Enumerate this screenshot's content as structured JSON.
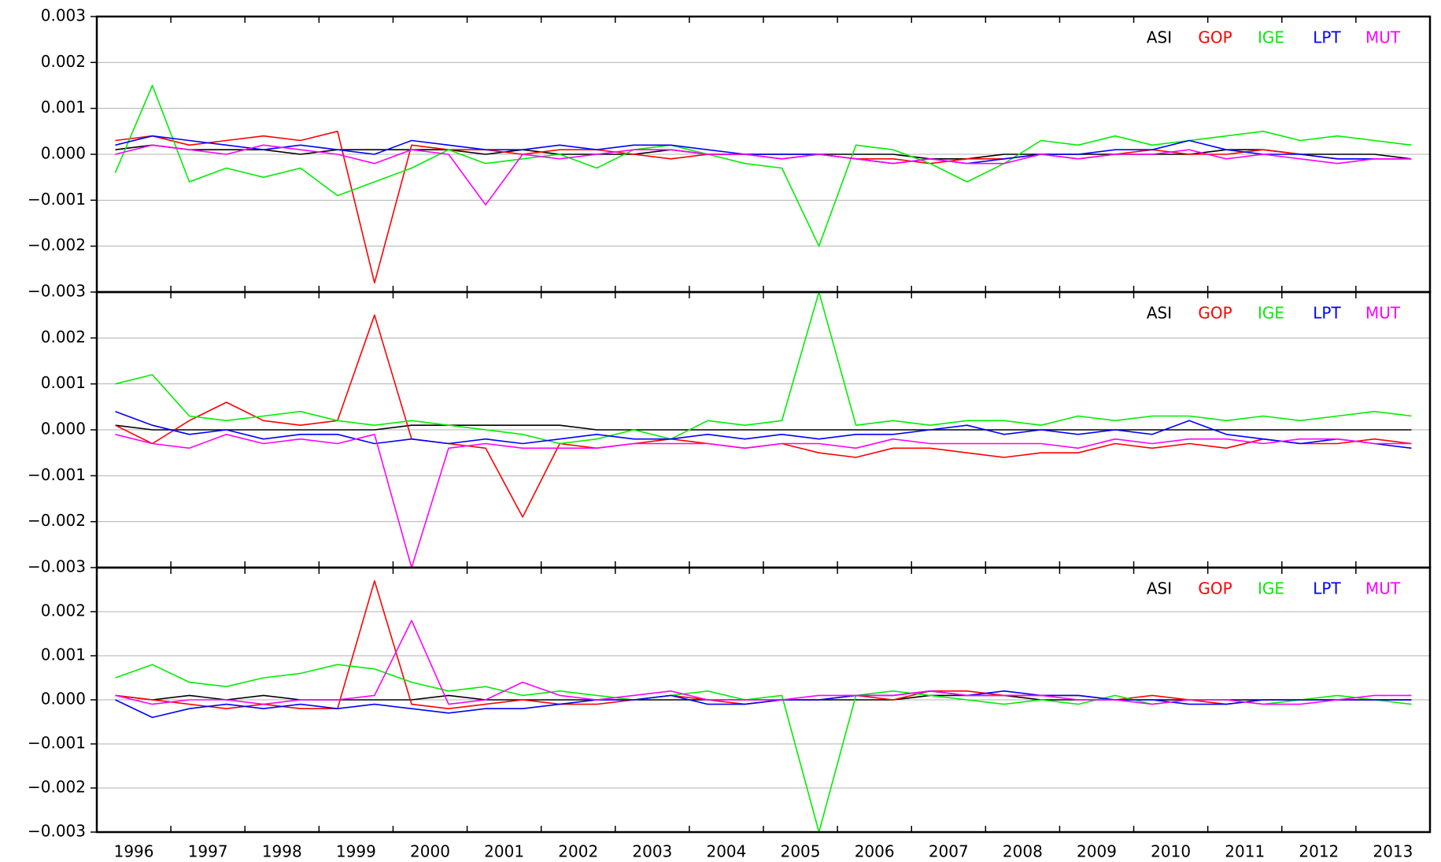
{
  "chart_data": [
    {
      "type": "line",
      "legend": "top-right",
      "grid": true,
      "xlim": [
        1996,
        2014
      ],
      "ylim": [
        -0.003,
        0.003
      ],
      "yticks": [
        {
          "value": -0.003,
          "label": "−0.003"
        },
        {
          "value": -0.002,
          "label": "−0.002"
        },
        {
          "value": -0.001,
          "label": "−0.001"
        },
        {
          "value": 0,
          "label": "0.000"
        },
        0.001,
        0.002,
        0.003
      ],
      "x": [
        1996.25,
        1996.75,
        1997.25,
        1997.75,
        1998.25,
        1998.75,
        1999.25,
        1999.75,
        2000.25,
        2000.75,
        2001.25,
        2001.75,
        2002.25,
        2002.75,
        2003.25,
        2003.75,
        2004.25,
        2004.75,
        2005.25,
        2005.75,
        2006.25,
        2006.75,
        2007.25,
        2007.75,
        2008.25,
        2008.75,
        2009.25,
        2009.75,
        2010.25,
        2010.75,
        2011.25,
        2011.75,
        2012.25,
        2012.75,
        2013.25,
        2013.75
      ],
      "series": [
        {
          "name": "ASI",
          "color": "#000000",
          "values": [
            0.0001,
            0.0002,
            0.0001,
            0.0001,
            0.0001,
            0,
            0.0001,
            0.0001,
            0.0001,
            0.0001,
            0,
            0.0001,
            0,
            0,
            0,
            0.0001,
            0,
            0,
            0,
            0,
            0,
            0,
            -0.0001,
            -0.0001,
            0,
            0,
            0,
            0,
            0,
            0,
            0.0001,
            0.0001,
            0,
            0,
            0,
            -0.0001
          ]
        },
        {
          "name": "GOP",
          "color": "#ff0000",
          "values": [
            0.0003,
            0.0004,
            0.0002,
            0.0003,
            0.0004,
            0.0003,
            0.0005,
            -0.0028,
            0.0002,
            0.0001,
            0.0001,
            0,
            0.0001,
            0.0001,
            0,
            -0.0001,
            0,
            0,
            -0.0001,
            0,
            -0.0001,
            -0.0001,
            -0.0002,
            -0.0001,
            -0.0001,
            0,
            -0.0001,
            0,
            0.0001,
            0,
            0,
            0.0001,
            0,
            -0.0001,
            -0.0001,
            -0.0001
          ]
        },
        {
          "name": "IGE",
          "color": "#00ee00",
          "values": [
            -0.0004,
            0.0015,
            -0.0006,
            -0.0003,
            -0.0005,
            -0.0003,
            -0.0009,
            -0.0006,
            -0.0003,
            0.0001,
            -0.0002,
            -0.0001,
            0,
            -0.0003,
            0.0001,
            0.0002,
            0,
            -0.0002,
            -0.0003,
            -0.002,
            0.0002,
            0.0001,
            -0.0002,
            -0.0006,
            -0.0002,
            0.0003,
            0.0002,
            0.0004,
            0.0002,
            0.0003,
            0.0004,
            0.0005,
            0.0003,
            0.0004,
            0.0003,
            0.0002
          ]
        },
        {
          "name": "LPT",
          "color": "#0000ff",
          "values": [
            0.0002,
            0.0004,
            0.0003,
            0.0002,
            0.0001,
            0.0002,
            0.0001,
            0,
            0.0003,
            0.0002,
            0.0001,
            0.0001,
            0.0002,
            0.0001,
            0.0002,
            0.0002,
            0.0001,
            0,
            0,
            0,
            -0.0001,
            -0.0002,
            -0.0001,
            -0.0002,
            -0.0001,
            0,
            0,
            0.0001,
            0.0001,
            0.0003,
            0.0001,
            0,
            0,
            -0.0001,
            -0.0001,
            -0.0001
          ]
        },
        {
          "name": "MUT",
          "color": "#ff00ff",
          "values": [
            0,
            0.0002,
            0.0001,
            0,
            0.0002,
            0.0001,
            0,
            -0.0002,
            0.0001,
            0,
            -0.0011,
            0,
            -0.0001,
            0,
            0.0001,
            0.0001,
            0,
            0,
            -0.0001,
            0,
            -0.0001,
            -0.0002,
            -0.0001,
            -0.0002,
            -0.0002,
            0,
            -0.0001,
            0,
            0,
            0.0001,
            -0.0001,
            0,
            -0.0001,
            -0.0002,
            -0.0001,
            -0.0001
          ]
        }
      ]
    },
    {
      "type": "line",
      "legend": "top-right",
      "grid": true,
      "xlim": [
        1996,
        2014
      ],
      "ylim": [
        -0.003,
        0.003
      ],
      "yticks": [
        {
          "value": -0.003,
          "label": "−0.003"
        },
        {
          "value": -0.002,
          "label": "−0.002"
        },
        {
          "value": -0.001,
          "label": "−0.001"
        },
        {
          "value": 0,
          "label": "0.000"
        },
        0.001,
        0.002
      ],
      "x": [
        1996.25,
        1996.75,
        1997.25,
        1997.75,
        1998.25,
        1998.75,
        1999.25,
        1999.75,
        2000.25,
        2000.75,
        2001.25,
        2001.75,
        2002.25,
        2002.75,
        2003.25,
        2003.75,
        2004.25,
        2004.75,
        2005.25,
        2005.75,
        2006.25,
        2006.75,
        2007.25,
        2007.75,
        2008.25,
        2008.75,
        2009.25,
        2009.75,
        2010.25,
        2010.75,
        2011.25,
        2011.75,
        2012.25,
        2012.75,
        2013.25,
        2013.75
      ],
      "series": [
        {
          "name": "ASI",
          "color": "#000000",
          "values": [
            0.0001,
            0,
            0,
            0,
            0,
            0,
            0,
            0,
            0.0001,
            0.0001,
            0.0001,
            0.0001,
            0.0001,
            0,
            0,
            0,
            0,
            0,
            0,
            0,
            0,
            0,
            0,
            0,
            0,
            0,
            0,
            0,
            0,
            0,
            0,
            0,
            0,
            0,
            0,
            0
          ]
        },
        {
          "name": "GOP",
          "color": "#ff0000",
          "values": [
            0.0001,
            -0.0003,
            0.0002,
            0.0006,
            0.0002,
            0.0001,
            0.0002,
            0.0025,
            -0.0002,
            -0.0003,
            -0.0004,
            -0.0019,
            -0.0003,
            -0.0004,
            -0.0003,
            -0.0002,
            -0.0003,
            -0.0004,
            -0.0003,
            -0.0005,
            -0.0006,
            -0.0004,
            -0.0004,
            -0.0005,
            -0.0006,
            -0.0005,
            -0.0005,
            -0.0003,
            -0.0004,
            -0.0003,
            -0.0004,
            -0.0002,
            -0.0003,
            -0.0003,
            -0.0002,
            -0.0003
          ]
        },
        {
          "name": "IGE",
          "color": "#00ee00",
          "values": [
            0.001,
            0.0012,
            0.0003,
            0.0002,
            0.0003,
            0.0004,
            0.0002,
            0.0001,
            0.0002,
            0.0001,
            0,
            -0.0001,
            -0.0003,
            -0.0002,
            0,
            -0.0002,
            0.0002,
            0.0001,
            0.0002,
            0.003,
            0.0001,
            0.0002,
            0.0001,
            0.0002,
            0.0002,
            0.0001,
            0.0003,
            0.0002,
            0.0003,
            0.0003,
            0.0002,
            0.0003,
            0.0002,
            0.0003,
            0.0004,
            0.0003
          ]
        },
        {
          "name": "LPT",
          "color": "#0000ff",
          "values": [
            0.0004,
            0.0001,
            -0.0001,
            0,
            -0.0002,
            -0.0001,
            -0.0001,
            -0.0003,
            -0.0002,
            -0.0003,
            -0.0002,
            -0.0003,
            -0.0002,
            -0.0001,
            -0.0002,
            -0.0002,
            -0.0001,
            -0.0002,
            -0.0001,
            -0.0002,
            -0.0001,
            -0.0001,
            0,
            0.0001,
            -0.0001,
            0,
            -0.0001,
            0,
            -0.0001,
            0.0002,
            -0.0001,
            -0.0002,
            -0.0003,
            -0.0002,
            -0.0003,
            -0.0004
          ]
        },
        {
          "name": "MUT",
          "color": "#ff00ff",
          "values": [
            -0.0001,
            -0.0003,
            -0.0004,
            -0.0001,
            -0.0003,
            -0.0002,
            -0.0003,
            -0.0001,
            -0.003,
            -0.0004,
            -0.0003,
            -0.0004,
            -0.0004,
            -0.0004,
            -0.0003,
            -0.0003,
            -0.0003,
            -0.0004,
            -0.0003,
            -0.0003,
            -0.0004,
            -0.0002,
            -0.0003,
            -0.0003,
            -0.0003,
            -0.0003,
            -0.0004,
            -0.0002,
            -0.0003,
            -0.0002,
            -0.0002,
            -0.0003,
            -0.0002,
            -0.0002,
            -0.0003,
            -0.0003
          ]
        }
      ]
    },
    {
      "type": "line",
      "legend": "top-right",
      "grid": true,
      "xlim": [
        1996,
        2014
      ],
      "ylim": [
        -0.003,
        0.003
      ],
      "xticks": [
        1996,
        1997,
        1998,
        1999,
        2000,
        2001,
        2002,
        2003,
        2004,
        2005,
        2006,
        2007,
        2008,
        2009,
        2010,
        2011,
        2012,
        2013
      ],
      "yticks": [
        {
          "value": -0.003,
          "label": "−0.003"
        },
        {
          "value": -0.002,
          "label": "−0.002"
        },
        {
          "value": -0.001,
          "label": "−0.001"
        },
        {
          "value": 0,
          "label": "0.000"
        },
        0.001,
        0.002
      ],
      "x": [
        1996.25,
        1996.75,
        1997.25,
        1997.75,
        1998.25,
        1998.75,
        1999.25,
        1999.75,
        2000.25,
        2000.75,
        2001.25,
        2001.75,
        2002.25,
        2002.75,
        2003.25,
        2003.75,
        2004.25,
        2004.75,
        2005.25,
        2005.75,
        2006.25,
        2006.75,
        2007.25,
        2007.75,
        2008.25,
        2008.75,
        2009.25,
        2009.75,
        2010.25,
        2010.75,
        2011.25,
        2011.75,
        2012.25,
        2012.75,
        2013.25,
        2013.75
      ],
      "series": [
        {
          "name": "ASI",
          "color": "#000000",
          "values": [
            0.0001,
            0,
            0.0001,
            0,
            0.0001,
            0,
            0,
            0,
            0,
            0.0001,
            0,
            0,
            0,
            0,
            0,
            0,
            0,
            0,
            0,
            0,
            0,
            0,
            0.0001,
            0.0001,
            0.0001,
            0,
            0,
            0,
            0,
            0,
            0,
            0,
            0,
            0,
            0,
            0
          ]
        },
        {
          "name": "GOP",
          "color": "#ff0000",
          "values": [
            0.0001,
            0,
            -0.0001,
            -0.0002,
            -0.0001,
            -0.0002,
            -0.0002,
            0.0027,
            -0.0001,
            -0.0002,
            -0.0001,
            0,
            -0.0001,
            -0.0001,
            0,
            0.0001,
            0,
            -0.0001,
            0,
            0,
            0.0001,
            0,
            0.0002,
            0.0002,
            0.0001,
            0.0001,
            0.0001,
            0,
            0.0001,
            0,
            -0.0001,
            0,
            0,
            0,
            0,
            0
          ]
        },
        {
          "name": "IGE",
          "color": "#00ee00",
          "values": [
            0.0005,
            0.0008,
            0.0004,
            0.0003,
            0.0005,
            0.0006,
            0.0008,
            0.0007,
            0.0004,
            0.0002,
            0.0003,
            0.0001,
            0.0002,
            0.0001,
            0,
            0.0001,
            0.0002,
            0,
            0.0001,
            -0.003,
            0.0001,
            0.0002,
            0.0001,
            0,
            -0.0001,
            0,
            -0.0001,
            0.0001,
            -0.0001,
            0,
            0,
            -0.0001,
            0,
            0.0001,
            0,
            -0.0001
          ]
        },
        {
          "name": "LPT",
          "color": "#0000ff",
          "values": [
            0,
            -0.0004,
            -0.0002,
            -0.0001,
            -0.0002,
            -0.0001,
            -0.0002,
            -0.0001,
            -0.0002,
            -0.0003,
            -0.0002,
            -0.0002,
            -0.0001,
            0,
            0,
            0.0001,
            -0.0001,
            -0.0001,
            0,
            0,
            0.0001,
            0.0001,
            0.0002,
            0.0001,
            0.0002,
            0.0001,
            0.0001,
            0,
            0,
            -0.0001,
            -0.0001,
            0,
            0,
            0,
            0,
            0
          ]
        },
        {
          "name": "MUT",
          "color": "#ff00ff",
          "values": [
            0.0001,
            -0.0001,
            0,
            0,
            -0.0001,
            0,
            0,
            0.0001,
            0.0018,
            -0.0001,
            0,
            0.0004,
            0.0001,
            0,
            0.0001,
            0.0002,
            0,
            0,
            0,
            0.0001,
            0.0001,
            0.0001,
            0.0002,
            0.0001,
            0.0001,
            0.0001,
            0,
            0,
            -0.0001,
            0,
            0,
            -0.0001,
            -0.0001,
            0,
            0.0001,
            0.0001
          ]
        }
      ]
    }
  ]
}
